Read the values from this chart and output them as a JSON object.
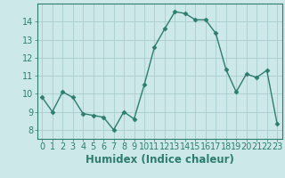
{
  "x": [
    0,
    1,
    2,
    3,
    4,
    5,
    6,
    7,
    8,
    9,
    10,
    11,
    12,
    13,
    14,
    15,
    16,
    17,
    18,
    19,
    20,
    21,
    22,
    23
  ],
  "y": [
    9.8,
    9.0,
    10.1,
    9.8,
    8.9,
    8.8,
    8.7,
    8.0,
    9.0,
    8.6,
    10.5,
    12.6,
    13.6,
    14.55,
    14.45,
    14.1,
    14.1,
    13.35,
    11.35,
    10.1,
    11.1,
    10.9,
    11.3,
    8.35
  ],
  "line_color": "#2d7d6e",
  "marker": "D",
  "marker_size": 2.5,
  "bg_color": "#cce8e8",
  "grid_color": "#aacccc",
  "xlabel": "Humidex (Indice chaleur)",
  "ylim": [
    7.5,
    15.0
  ],
  "xlim": [
    -0.5,
    23.5
  ],
  "yticks": [
    8,
    9,
    10,
    11,
    12,
    13,
    14
  ],
  "xticks": [
    0,
    1,
    2,
    3,
    4,
    5,
    6,
    7,
    8,
    9,
    10,
    11,
    12,
    13,
    14,
    15,
    16,
    17,
    18,
    19,
    20,
    21,
    22,
    23
  ],
  "tick_label_fontsize": 7,
  "xlabel_fontsize": 8.5,
  "spine_color": "#2d7d6e"
}
